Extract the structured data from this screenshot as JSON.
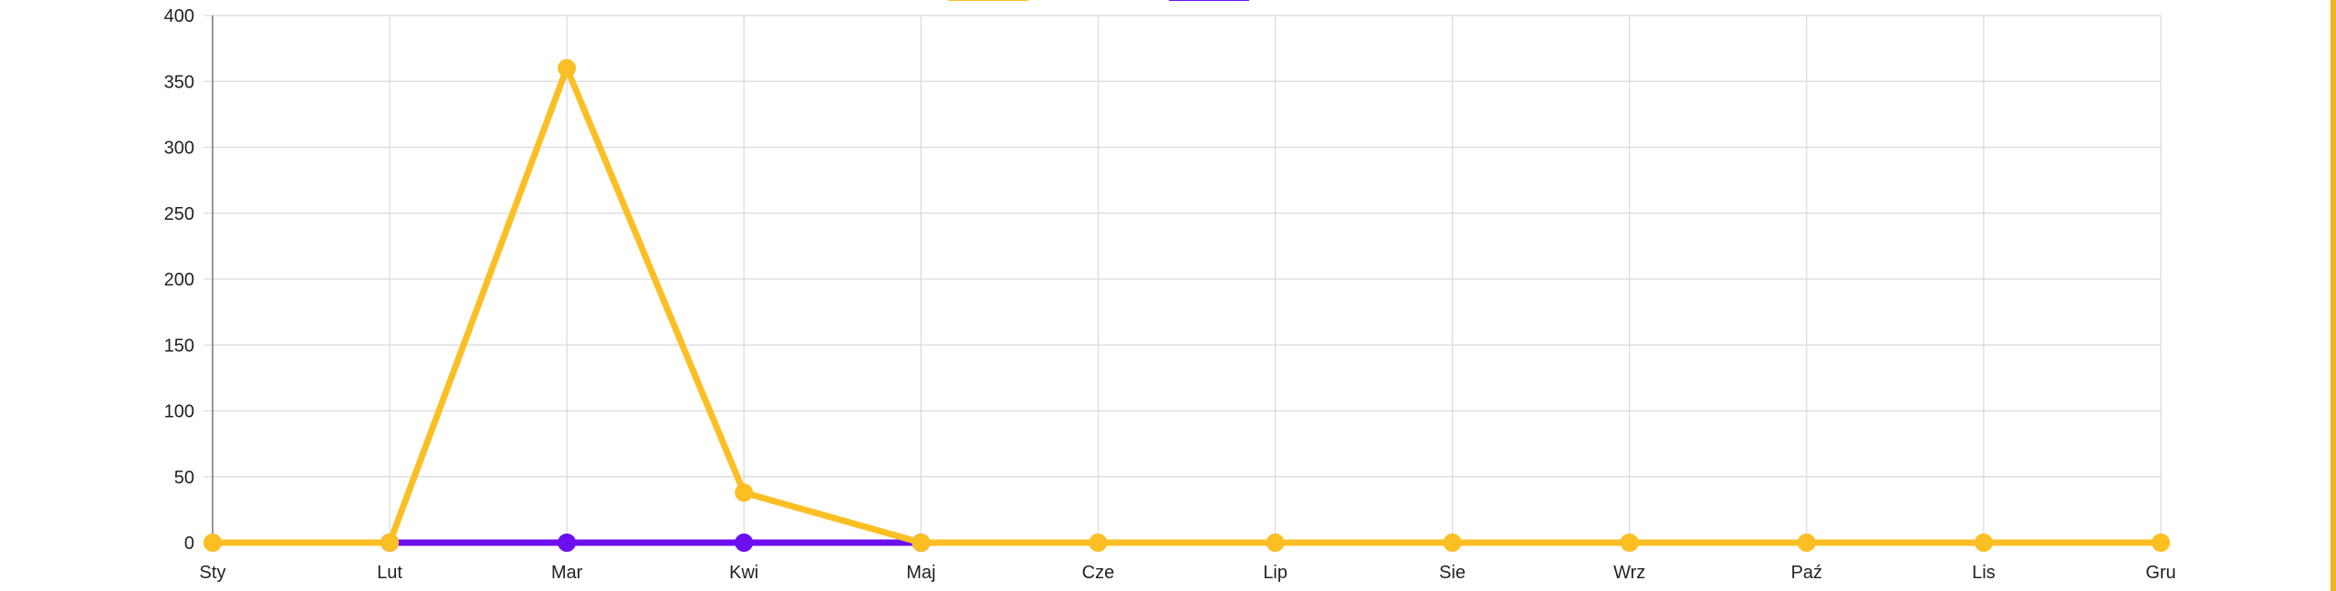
{
  "colors": {
    "series_yellow": "#fbbf24",
    "series_purple": "#6d0eef",
    "grid": "#d9d9d9",
    "axis": "#777777",
    "right_accent": "#f3b51b"
  },
  "chart_data": {
    "type": "line",
    "title": "",
    "xlabel": "",
    "ylabel": "",
    "categories": [
      "Sty",
      "Lut",
      "Mar",
      "Kwi",
      "Maj",
      "Cze",
      "Lip",
      "Sie",
      "Wrz",
      "Paź",
      "Lis",
      "Gru"
    ],
    "ylim": [
      0,
      400
    ],
    "yticks": [
      "0",
      "50",
      "100",
      "150",
      "200",
      "250",
      "300",
      "350",
      "400"
    ],
    "grid": true,
    "legend_position": "top-center",
    "series": [
      {
        "color": "#fbbf24",
        "values": [
          0,
          0,
          360,
          38,
          0,
          0,
          0,
          0,
          0,
          0,
          0,
          0
        ]
      },
      {
        "color": "#6d0eef",
        "values": [
          null,
          0,
          0,
          0,
          0,
          null,
          null,
          null,
          null,
          null,
          null,
          null
        ]
      }
    ]
  }
}
